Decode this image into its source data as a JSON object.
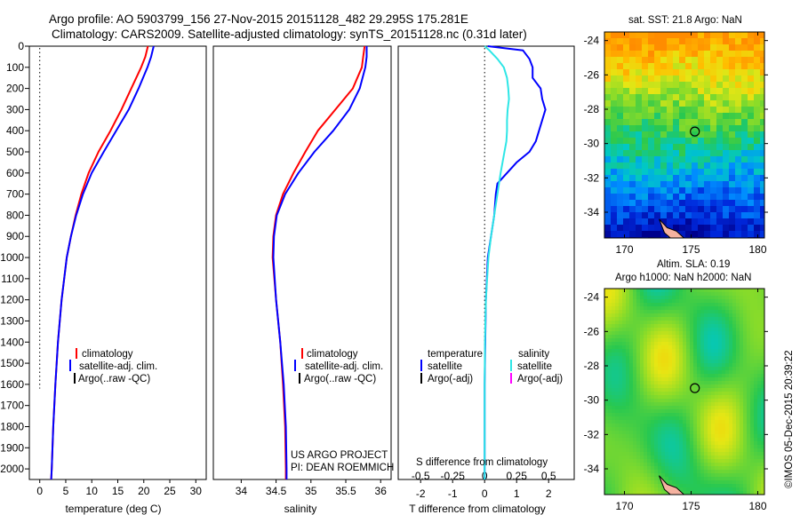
{
  "header": {
    "line1": "Argo profile: AO 5903799_156 27-Nov-2015 20151128_482 29.295S 175.281E",
    "line2": "Climatology: CARS2009. Satellite-adjusted climatology: synTS_20151128.nc (0.31d later)"
  },
  "colors": {
    "climatology": "#ff0000",
    "satellite": "#0000ff",
    "argo": "#000000",
    "sal_satellite": "#2ee6e6",
    "sal_argo": "#ff00ff"
  },
  "credit": {
    "line1": "US ARGO PROJECT",
    "line2": "PI: DEAN ROEMMICH"
  },
  "stamp": "©IMOS 05-Dec-2015 20:39:22",
  "chart_data": [
    {
      "id": "temperature",
      "type": "line",
      "xlabel": "temperature (deg C)",
      "xlim": [
        -2,
        32
      ],
      "ylim": [
        0,
        2050
      ],
      "xticks": [
        0,
        5,
        10,
        15,
        20,
        25,
        30
      ],
      "yticks": [
        0,
        100,
        200,
        300,
        400,
        500,
        600,
        700,
        800,
        900,
        1000,
        1100,
        1200,
        1300,
        1400,
        1500,
        1600,
        1700,
        1800,
        1900,
        2000
      ],
      "zero_line": 0,
      "legend": [
        "climatology",
        "satellite-adj. clim.",
        "Argo(..raw -QC)"
      ],
      "series": [
        {
          "name": "climatology",
          "color": "#ff0000",
          "depth": [
            0,
            50,
            100,
            200,
            300,
            400,
            500,
            600,
            700,
            800,
            900,
            1000,
            1200,
            1400,
            1600,
            1800,
            2000,
            2050
          ],
          "values": [
            20.8,
            20.3,
            19.5,
            17.6,
            15.7,
            13.6,
            11.3,
            9.4,
            8.0,
            6.9,
            6.0,
            5.2,
            4.2,
            3.5,
            3.0,
            2.6,
            2.3,
            2.2
          ]
        },
        {
          "name": "satellite-adj. clim.",
          "color": "#0000ff",
          "depth": [
            0,
            50,
            100,
            200,
            300,
            400,
            500,
            600,
            700,
            800,
            900,
            1000,
            1200,
            1400,
            1600,
            1800,
            2000,
            2050
          ],
          "values": [
            21.9,
            21.4,
            20.7,
            19.0,
            17.1,
            14.7,
            12.3,
            10.0,
            8.3,
            7.0,
            6.0,
            5.2,
            4.2,
            3.5,
            3.0,
            2.6,
            2.3,
            2.2
          ]
        }
      ]
    },
    {
      "id": "salinity",
      "type": "line",
      "xlabel": "salinity",
      "xlim": [
        33.6,
        36.15
      ],
      "ylim": [
        0,
        2050
      ],
      "xticks": [
        34,
        34.5,
        35,
        35.5,
        36
      ],
      "legend": [
        "climatology",
        "satellite-adj. clim.",
        "Argo(..raw -QC)"
      ],
      "series": [
        {
          "name": "climatology",
          "color": "#ff0000",
          "depth": [
            0,
            50,
            100,
            200,
            300,
            400,
            500,
            600,
            700,
            800,
            900,
            1000,
            1200,
            1400,
            1600,
            1800,
            2000,
            2050
          ],
          "values": [
            35.77,
            35.75,
            35.73,
            35.6,
            35.35,
            35.1,
            34.92,
            34.75,
            34.6,
            34.5,
            34.46,
            34.45,
            34.5,
            34.56,
            34.6,
            34.63,
            34.64,
            34.64
          ]
        },
        {
          "name": "satellite-adj. clim.",
          "color": "#0000ff",
          "depth": [
            0,
            50,
            100,
            200,
            300,
            400,
            500,
            600,
            700,
            800,
            900,
            1000,
            1200,
            1400,
            1600,
            1800,
            2000,
            2050
          ],
          "values": [
            35.8,
            35.8,
            35.78,
            35.7,
            35.55,
            35.32,
            35.05,
            34.82,
            34.63,
            34.51,
            34.47,
            34.46,
            34.5,
            34.56,
            34.61,
            34.64,
            34.65,
            34.65
          ]
        }
      ]
    },
    {
      "id": "difference",
      "type": "line",
      "xlabel": "T difference from climatology",
      "xlabel_s": "S difference from climatology",
      "xlim": [
        -2.7,
        2.8
      ],
      "ylim": [
        0,
        2050
      ],
      "xticks_t": [
        -2,
        -1,
        0,
        1,
        2
      ],
      "xticks_s": [
        -0.5,
        -0.25,
        0,
        0.25,
        0.5
      ],
      "legend_temperature": {
        "title": "temperature",
        "items": [
          "satellite",
          "Argo(-adj)"
        ]
      },
      "legend_salinity": {
        "title": "salinity",
        "items": [
          "satellite",
          "Argo(-adj)"
        ]
      },
      "series": [
        {
          "name": "satellite",
          "color": "#0000ff",
          "depth": [
            0,
            20,
            60,
            100,
            150,
            200,
            250,
            300,
            350,
            400,
            450,
            500,
            550,
            600,
            650,
            700,
            800,
            900,
            1000,
            1200,
            1400,
            1600,
            1800,
            2000,
            2050
          ],
          "values": [
            0.1,
            1.2,
            1.4,
            1.5,
            1.5,
            1.75,
            1.8,
            1.9,
            1.8,
            1.7,
            1.6,
            1.4,
            1.0,
            0.7,
            0.4,
            0.35,
            0.3,
            0.2,
            0.1,
            0.04,
            0.02,
            0.0,
            0.0,
            0.0,
            0.0
          ]
        },
        {
          "name": "salinity satellite",
          "color": "#2ee6e6",
          "depth": [
            0,
            20,
            60,
            100,
            150,
            200,
            250,
            300,
            350,
            400,
            450,
            500,
            600,
            700,
            800,
            900,
            1000,
            1200,
            1400,
            1600,
            1800,
            2000,
            2050
          ],
          "values": [
            0.0,
            0.15,
            0.4,
            0.6,
            0.7,
            0.74,
            0.76,
            0.72,
            0.7,
            0.7,
            0.68,
            0.62,
            0.5,
            0.4,
            0.3,
            0.2,
            0.12,
            0.04,
            0.01,
            0.0,
            0.0,
            0.0,
            0.0
          ]
        }
      ]
    },
    {
      "id": "sst_map",
      "type": "heatmap",
      "title": "sat. SST: 21.8 Argo: NaN",
      "xlim": [
        168.5,
        180.5
      ],
      "ylim": [
        -35.5,
        -23.5
      ],
      "xticks": [
        170,
        175,
        180
      ],
      "yticks": [
        -24,
        -26,
        -28,
        -30,
        -32,
        -34
      ],
      "argo_position": [
        175.28,
        -29.3
      ]
    },
    {
      "id": "sla_map",
      "type": "heatmap",
      "title_line1": "Altim. SLA: 0.19",
      "title_line2": "Argo h1000: NaN h2000: NaN",
      "xlim": [
        168.5,
        180.5
      ],
      "ylim": [
        -35.5,
        -23.5
      ],
      "xticks": [
        170,
        175,
        180
      ],
      "yticks": [
        -24,
        -26,
        -28,
        -30,
        -32,
        -34
      ],
      "argo_position": [
        175.28,
        -29.3
      ]
    }
  ]
}
